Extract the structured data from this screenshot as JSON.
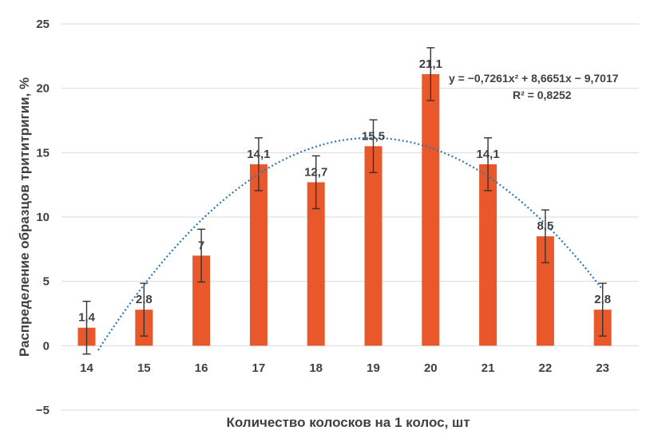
{
  "chart_data": {
    "type": "bar",
    "categories": [
      "14",
      "15",
      "16",
      "17",
      "18",
      "19",
      "20",
      "21",
      "22",
      "23"
    ],
    "values": [
      1.4,
      2.8,
      7,
      14.1,
      12.7,
      15.5,
      21.1,
      14.1,
      8.5,
      2.8
    ],
    "data_labels": [
      "1,4",
      "2,8",
      "7",
      "14,1",
      "12,7",
      "15,5",
      "21,1",
      "14,1",
      "8,5",
      "2,8"
    ],
    "error": 2.05,
    "xlabel": "Количество колосков на 1 колос, шт",
    "ylabel": "Распределение образцов трититригии, %",
    "ylim": [
      -5,
      25
    ],
    "yticks": [
      -5,
      0,
      5,
      10,
      15,
      20,
      25
    ],
    "ytick_labels": [
      "−5",
      "0",
      "5",
      "10",
      "15",
      "20",
      "25"
    ],
    "grid": true,
    "trendline": {
      "type": "polynomial",
      "coefficients": [
        -0.7261,
        8.6651,
        -9.7017
      ],
      "equation_text": "y = −0,7261x² + 8,6651x − 9,7017",
      "r2_text": "R² = 0,8252"
    },
    "colors": {
      "bar": "#E8582A",
      "trend": "#2E75B6",
      "grid": "#D9D9D9",
      "text": "#404040"
    }
  }
}
